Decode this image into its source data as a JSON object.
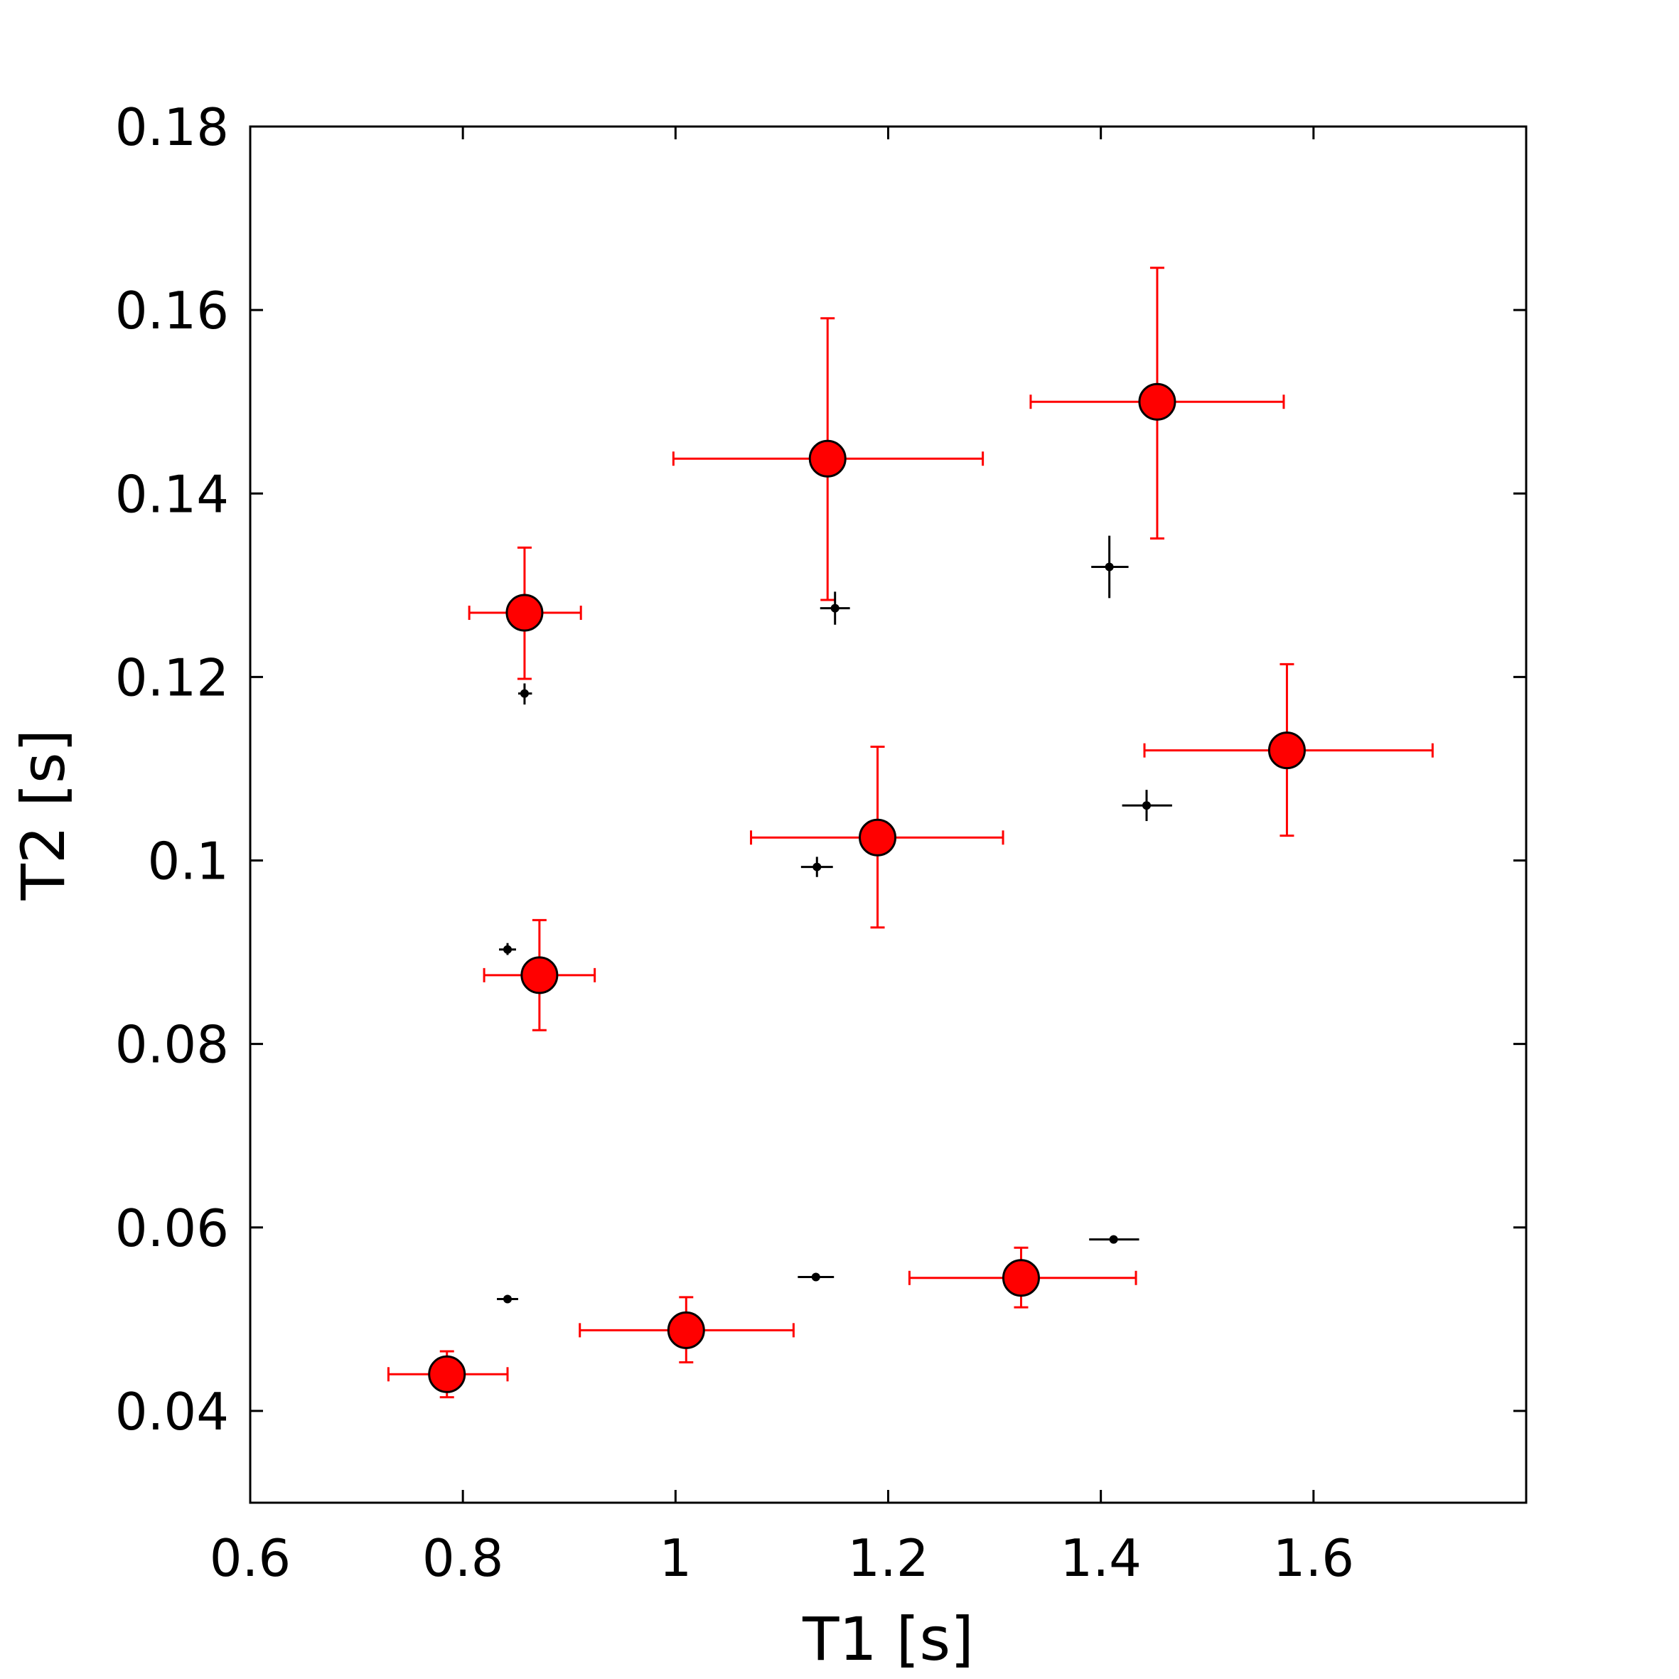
{
  "chart_data": {
    "type": "scatter",
    "title": "",
    "xlabel": "T1 [s]",
    "ylabel": "T2 [s]",
    "xlim": [
      0.6,
      1.8
    ],
    "ylim": [
      0.03,
      0.18
    ],
    "xticks": [
      0.6,
      0.8,
      1.0,
      1.2,
      1.4,
      1.6
    ],
    "xtick_labels": [
      "0.6",
      "0.8",
      "1",
      "1.2",
      "1.4",
      "1.6"
    ],
    "yticks": [
      0.04,
      0.06,
      0.08,
      0.1,
      0.12,
      0.14,
      0.16,
      0.18
    ],
    "ytick_labels": [
      "0.04",
      "0.06",
      "0.08",
      "0.1",
      "0.12",
      "0.14",
      "0.16",
      "0.18"
    ],
    "grid": false,
    "colors": {
      "red_series": "#ff0000",
      "black_series": "#000000",
      "marker_edge": "#000000"
    },
    "series": [
      {
        "name": "red",
        "marker": "large-circle",
        "points": [
          {
            "x": 0.785,
            "y": 0.044,
            "xerr": [
              0.73,
              0.842
            ],
            "yerr": [
              0.0415,
              0.0465
            ]
          },
          {
            "x": 1.01,
            "y": 0.0488,
            "xerr": [
              0.91,
              1.111
            ],
            "yerr": [
              0.0453,
              0.0524
            ]
          },
          {
            "x": 1.325,
            "y": 0.0545,
            "xerr": [
              1.22,
              1.433
            ],
            "yerr": [
              0.0513,
              0.0578
            ]
          },
          {
            "x": 0.872,
            "y": 0.0875,
            "xerr": [
              0.82,
              0.924
            ],
            "yerr": [
              0.0815,
              0.0935
            ]
          },
          {
            "x": 1.19,
            "y": 0.1025,
            "xerr": [
              1.071,
              1.308
            ],
            "yerr": [
              0.0927,
              0.1124
            ]
          },
          {
            "x": 1.575,
            "y": 0.112,
            "xerr": [
              1.441,
              1.712
            ],
            "yerr": [
              0.1027,
              0.1214
            ]
          },
          {
            "x": 0.858,
            "y": 0.127,
            "xerr": [
              0.806,
              0.911
            ],
            "yerr": [
              0.1198,
              0.1341
            ]
          },
          {
            "x": 1.143,
            "y": 0.1438,
            "xerr": [
              0.998,
              1.289
            ],
            "yerr": [
              0.1284,
              0.1591
            ]
          },
          {
            "x": 1.453,
            "y": 0.15,
            "xerr": [
              1.334,
              1.572
            ],
            "yerr": [
              0.1351,
              0.1646
            ]
          }
        ]
      },
      {
        "name": "black",
        "marker": "small-dot",
        "points": [
          {
            "x": 0.842,
            "y": 0.0522,
            "xerr": [
              0.832,
              0.852
            ],
            "yerr": [
              0.0522,
              0.0522
            ]
          },
          {
            "x": 1.132,
            "y": 0.0546,
            "xerr": [
              1.115,
              1.149
            ],
            "yerr": [
              0.0546,
              0.0546
            ]
          },
          {
            "x": 1.412,
            "y": 0.0587,
            "xerr": [
              1.389,
              1.436
            ],
            "yerr": [
              0.0587,
              0.0587
            ]
          },
          {
            "x": 0.842,
            "y": 0.0903,
            "xerr": [
              0.834,
              0.85
            ],
            "yerr": [
              0.0897,
              0.091
            ]
          },
          {
            "x": 1.133,
            "y": 0.0993,
            "xerr": [
              1.118,
              1.148
            ],
            "yerr": [
              0.0982,
              0.1004
            ]
          },
          {
            "x": 1.443,
            "y": 0.106,
            "xerr": [
              1.42,
              1.467
            ],
            "yerr": [
              0.1043,
              0.1077
            ]
          },
          {
            "x": 0.858,
            "y": 0.1182,
            "xerr": [
              0.852,
              0.865
            ],
            "yerr": [
              0.117,
              0.1193
            ]
          },
          {
            "x": 1.15,
            "y": 0.1275,
            "xerr": [
              1.136,
              1.164
            ],
            "yerr": [
              0.1257,
              0.1293
            ]
          },
          {
            "x": 1.408,
            "y": 0.132,
            "xerr": [
              1.391,
              1.426
            ],
            "yerr": [
              0.1286,
              0.1354
            ]
          }
        ]
      }
    ]
  }
}
